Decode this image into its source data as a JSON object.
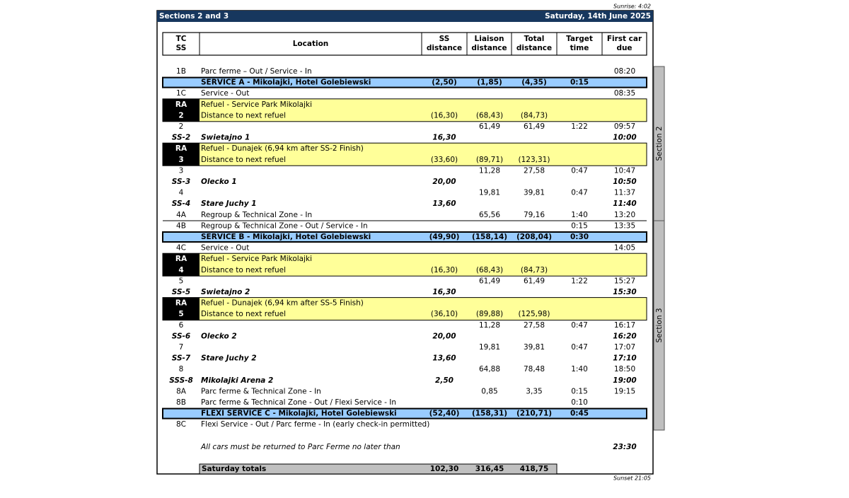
{
  "header": {
    "sunrise": "Sunrise: 4:02",
    "title": "Sections 2 and 3",
    "date": "Saturday, 14th June 2025",
    "sunset": "Sunset 21:05"
  },
  "columns": [
    [
      "TC",
      "SS"
    ],
    [
      "Location"
    ],
    [
      "SS",
      "distance"
    ],
    [
      "Liaison",
      "distance"
    ],
    [
      "Total",
      "distance"
    ],
    [
      "Target",
      "time"
    ],
    [
      "First car",
      "due"
    ]
  ],
  "sections": [
    "Section 2",
    "Section 3"
  ],
  "rows": [
    {
      "kind": "plain",
      "tc": "1B",
      "location": "Parc ferme – Out / Service - In",
      "due": "08:20"
    },
    {
      "kind": "service",
      "location": "SERVICE A - Mikolajki, Hotel Golebiewski",
      "ss": "(2,50)",
      "liaison": "(1,85)",
      "total": "(4,35)",
      "target": "0:15"
    },
    {
      "kind": "plain",
      "tc": "1C",
      "location": "Service - Out",
      "due": "08:35"
    },
    {
      "kind": "refuel",
      "tc": [
        "RA",
        "2"
      ],
      "location": "Refuel - Service Park Mikolajki",
      "location2": "Distance to next refuel",
      "ss": "(16,30)",
      "liaison": "(68,43)",
      "total": "(84,73)"
    },
    {
      "kind": "plain",
      "tc": "2",
      "liaison": "61,49",
      "total": "61,49",
      "target": "1:22",
      "due": "09:57"
    },
    {
      "kind": "stage",
      "tc": "SS-2",
      "location": "Swietajno 1",
      "ss": "16,30",
      "due": "10:00"
    },
    {
      "kind": "refuel",
      "tc": [
        "RA",
        "3"
      ],
      "location": "Refuel - Dunajek (6,94 km after SS-2 Finish)",
      "location2": "Distance to next refuel",
      "ss": "(33,60)",
      "liaison": "(89,71)",
      "total": "(123,31)"
    },
    {
      "kind": "plain",
      "tc": "3",
      "liaison": "11,28",
      "total": "27,58",
      "target": "0:47",
      "due": "10:47"
    },
    {
      "kind": "stage",
      "tc": "SS-3",
      "location": "Olecko 1",
      "ss": "20,00",
      "due": "10:50"
    },
    {
      "kind": "plain",
      "tc": "4",
      "liaison": "19,81",
      "total": "39,81",
      "target": "0:47",
      "due": "11:37"
    },
    {
      "kind": "stage",
      "tc": "SS-4",
      "location": "Stare Juchy 1",
      "ss": "13,60",
      "due": "11:40"
    },
    {
      "kind": "plain",
      "tc": "4A",
      "location": "Regroup & Technical Zone - In",
      "liaison": "65,56",
      "total": "79,16",
      "target": "1:40",
      "due": "13:20"
    },
    {
      "kind": "plain",
      "tc": "4B",
      "location": "Regroup & Technical Zone - Out / Service - In",
      "target": "0:15",
      "due": "13:35"
    },
    {
      "kind": "service",
      "location": "SERVICE B - Mikolajki, Hotel Golebiewski",
      "ss": "(49,90)",
      "liaison": "(158,14)",
      "total": "(208,04)",
      "target": "0:30"
    },
    {
      "kind": "plain",
      "tc": "4C",
      "location": "Service - Out",
      "due": "14:05"
    },
    {
      "kind": "refuel",
      "tc": [
        "RA",
        "4"
      ],
      "location": "Refuel - Service Park Mikolajki",
      "location2": "Distance to next refuel",
      "ss": "(16,30)",
      "liaison": "(68,43)",
      "total": "(84,73)"
    },
    {
      "kind": "plain",
      "tc": "5",
      "liaison": "61,49",
      "total": "61,49",
      "target": "1:22",
      "due": "15:27"
    },
    {
      "kind": "stage",
      "tc": "SS-5",
      "location": "Swietajno 2",
      "ss": "16,30",
      "due": "15:30"
    },
    {
      "kind": "refuel",
      "tc": [
        "RA",
        "5"
      ],
      "location": "Refuel - Dunajek (6,94 km after SS-5 Finish)",
      "location2": "Distance to next refuel",
      "ss": "(36,10)",
      "liaison": "(89,88)",
      "total": "(125,98)"
    },
    {
      "kind": "plain",
      "tc": "6",
      "liaison": "11,28",
      "total": "27,58",
      "target": "0:47",
      "due": "16:17"
    },
    {
      "kind": "stage",
      "tc": "SS-6",
      "location": "Olecko 2",
      "ss": "20,00",
      "due": "16:20"
    },
    {
      "kind": "plain",
      "tc": "7",
      "liaison": "19,81",
      "total": "39,81",
      "target": "0:47",
      "due": "17:07"
    },
    {
      "kind": "stage",
      "tc": "SS-7",
      "location": "Stare Juchy 2",
      "ss": "13,60",
      "due": "17:10"
    },
    {
      "kind": "plain",
      "tc": "8",
      "liaison": "64,88",
      "total": "78,48",
      "target": "1:40",
      "due": "18:50"
    },
    {
      "kind": "stage",
      "tc": "SSS-8",
      "location": "Mikolajki Arena 2",
      "ss": "2,50",
      "due": "19:00"
    },
    {
      "kind": "plain",
      "tc": "8A",
      "location": "Parc ferme & Technical Zone - In",
      "liaison": "0,85",
      "total": "3,35",
      "target": "0:15",
      "due": "19:15"
    },
    {
      "kind": "plain",
      "tc": "8B",
      "location": "Parc ferme & Technical Zone - Out / Flexi Service - In",
      "target": "0:10"
    },
    {
      "kind": "service",
      "location": "FLEXI SERVICE C - Mikolajki, Hotel Golebiewski",
      "ss": "(52,40)",
      "liaison": "(158,31)",
      "total": "(210,71)",
      "target": "0:45"
    },
    {
      "kind": "plain",
      "tc": "8C",
      "location": "Flexi Service - Out / Parc ferme - In (early check-in permitted)"
    }
  ],
  "note": {
    "text": "All cars must be returned to Parc Ferme no later than",
    "due": "23:30"
  },
  "totals": {
    "label": "Saturday totals",
    "ss": "102,30",
    "liaison": "316,45",
    "total": "418,75"
  }
}
